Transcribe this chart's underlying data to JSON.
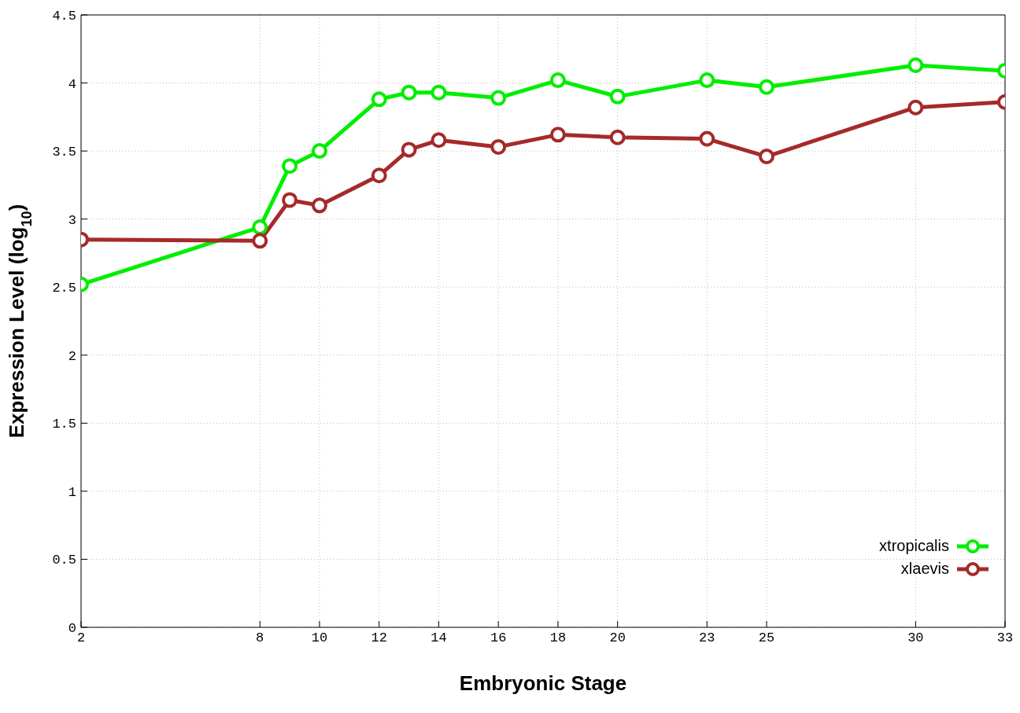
{
  "chart_data": {
    "type": "line",
    "xlabel": "Embryonic Stage",
    "ylabel": "Expression Level (log$_{10}$)",
    "x": [
      2,
      8,
      9,
      10,
      12,
      13,
      14,
      16,
      18,
      20,
      23,
      25,
      30,
      33
    ],
    "series": [
      {
        "name": "xtropicalis",
        "color": "#00ee00",
        "values": [
          2.52,
          2.94,
          3.39,
          3.5,
          3.88,
          3.93,
          3.93,
          3.89,
          4.02,
          3.9,
          4.02,
          3.97,
          4.13,
          4.09
        ]
      },
      {
        "name": "xlaevis",
        "color": "#a52a2a",
        "values": [
          2.85,
          2.84,
          3.14,
          3.1,
          3.32,
          3.51,
          3.58,
          3.53,
          3.62,
          3.6,
          3.59,
          3.46,
          3.82,
          3.86
        ]
      }
    ],
    "xlim": [
      2,
      33
    ],
    "xticks": [
      2,
      8,
      10,
      12,
      14,
      16,
      18,
      20,
      23,
      25,
      30,
      33
    ],
    "ylim": [
      0,
      4.5
    ],
    "yticks": [
      0,
      0.5,
      1,
      1.5,
      2,
      2.5,
      3,
      3.5,
      4,
      4.5
    ],
    "grid": true,
    "legend": "bottom right",
    "marker": "circle",
    "line_style": "solid"
  }
}
